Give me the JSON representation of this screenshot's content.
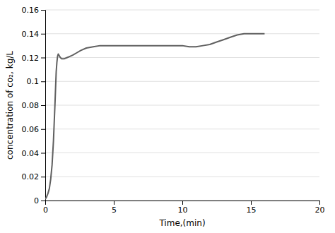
{
  "chart_data": {
    "type": "line",
    "xlabel": "Time,(min)",
    "ylabel": "concentration of co₂, kg/L",
    "x": [
      0,
      0.05,
      0.1,
      0.2,
      0.3,
      0.4,
      0.5,
      0.6,
      0.7,
      0.8,
      0.85,
      0.9,
      0.95,
      1.0,
      1.05,
      1.1,
      1.2,
      1.3,
      1.4,
      1.6,
      1.8,
      2.0,
      2.3,
      2.6,
      3.0,
      3.5,
      4.0,
      4.5,
      5.0,
      5.5,
      6.0,
      6.5,
      7.0,
      7.5,
      8.0,
      8.5,
      9.0,
      9.5,
      10.0,
      10.5,
      11.0,
      11.5,
      12.0,
      12.5,
      13.0,
      13.5,
      14.0,
      14.5,
      15.0,
      15.5,
      16.0
    ],
    "values": [
      0.001,
      0.002,
      0.003,
      0.006,
      0.01,
      0.018,
      0.03,
      0.05,
      0.078,
      0.108,
      0.116,
      0.121,
      0.123,
      0.122,
      0.121,
      0.12,
      0.119,
      0.119,
      0.119,
      0.12,
      0.121,
      0.122,
      0.124,
      0.126,
      0.128,
      0.129,
      0.13,
      0.13,
      0.13,
      0.13,
      0.13,
      0.13,
      0.13,
      0.13,
      0.13,
      0.13,
      0.13,
      0.13,
      0.13,
      0.129,
      0.129,
      0.13,
      0.131,
      0.133,
      0.135,
      0.137,
      0.139,
      0.14,
      0.14,
      0.14,
      0.14
    ],
    "color": "#606060",
    "xlim": [
      0,
      20
    ],
    "ylim": [
      0,
      0.16
    ],
    "xticks": [
      0,
      5,
      10,
      15,
      20
    ],
    "yticks": [
      0,
      0.02,
      0.04,
      0.06,
      0.08,
      0.1,
      0.12,
      0.14,
      0.16
    ],
    "grid": true
  }
}
